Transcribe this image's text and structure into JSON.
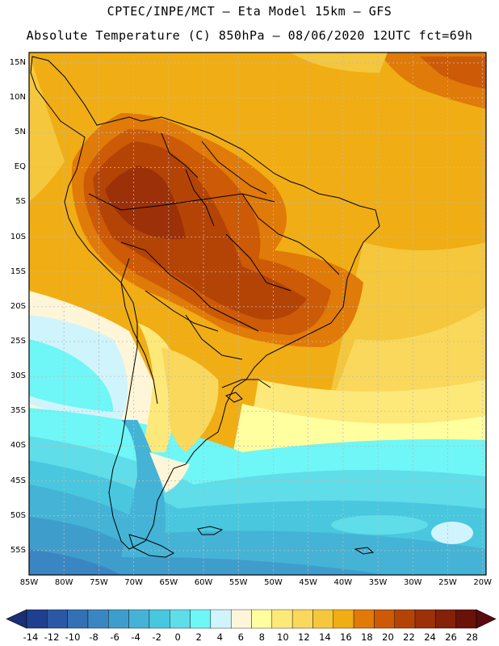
{
  "header": {
    "line1": "CPTEC/INPE/MCT –  Eta Model 15km – GFS",
    "line2": "Absolute Temperature (C) 850hPa – 08/06/2020 12UTC fct=69h"
  },
  "map": {
    "lat_labels": [
      "15N",
      "10N",
      "5N",
      "EQ",
      "5S",
      "10S",
      "15S",
      "20S",
      "25S",
      "30S",
      "35S",
      "40S",
      "45S",
      "50S",
      "55S"
    ],
    "lon_labels": [
      "85W",
      "80W",
      "75W",
      "70W",
      "65W",
      "60W",
      "55W",
      "50W",
      "45W",
      "40W",
      "35W",
      "30W",
      "25W",
      "20W"
    ],
    "lat_values": [
      15,
      10,
      5,
      0,
      -5,
      -10,
      -15,
      -20,
      -25,
      -30,
      -35,
      -40,
      -45,
      -50,
      -55
    ],
    "lon_values": [
      -85,
      -80,
      -75,
      -70,
      -65,
      -60,
      -55,
      -50,
      -45,
      -40,
      -35,
      -30,
      -25,
      -20
    ]
  },
  "colorbar": {
    "labels": [
      "-14",
      "-12",
      "-10",
      "-8",
      "-6",
      "-4",
      "-2",
      "0",
      "2",
      "4",
      "6",
      "8",
      "10",
      "12",
      "14",
      "16",
      "18",
      "20",
      "22",
      "24",
      "26",
      "28"
    ],
    "colors": [
      "#1f3f8f",
      "#2a58a5",
      "#3370b4",
      "#3a86c2",
      "#3f9dcc",
      "#44b3d6",
      "#48c7de",
      "#5fdde8",
      "#6ff6f6",
      "#d0f4fb",
      "#fff6d9",
      "#ffffa0",
      "#fde97a",
      "#f9d85b",
      "#f4c73c",
      "#f0ad14",
      "#e07a08",
      "#cc5a06",
      "#b44406",
      "#9c3008",
      "#842108",
      "#6a1208"
    ]
  }
}
